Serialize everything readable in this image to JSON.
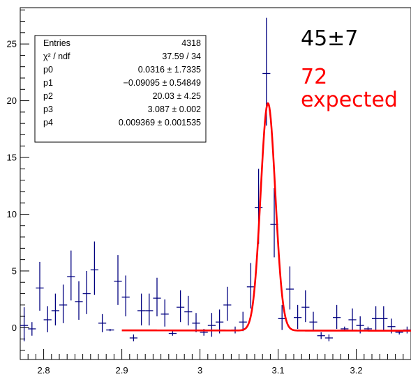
{
  "chart_data": {
    "type": "scatter",
    "title": "",
    "xlabel": "",
    "ylabel": "",
    "xlim": [
      2.77,
      3.27
    ],
    "ylim": [
      -2.8,
      28.2
    ],
    "x_ticks": [
      2.8,
      2.9,
      3.0,
      3.1,
      3.2
    ],
    "x_tick_labels": [
      "2.8",
      "2.9",
      "3",
      "3.1",
      "3.2"
    ],
    "y_ticks": [
      0,
      5,
      10,
      15,
      20,
      25
    ],
    "y_tick_labels": [
      "0",
      "5",
      "10",
      "15",
      "20",
      "25"
    ],
    "grid": false,
    "bin_width": 0.01,
    "series": [
      {
        "color": "#00007f",
        "points": [
          {
            "x": 2.775,
            "y": 0.2,
            "yerr_low": 1.4,
            "yerr_high": 1.6
          },
          {
            "x": 2.785,
            "y": -0.1,
            "yerr_low": 0.6,
            "yerr_high": 0.6
          },
          {
            "x": 2.795,
            "y": 3.5,
            "yerr_low": 2.0,
            "yerr_high": 2.3
          },
          {
            "x": 2.805,
            "y": 0.7,
            "yerr_low": 1.1,
            "yerr_high": 1.2
          },
          {
            "x": 2.815,
            "y": 1.5,
            "yerr_low": 1.3,
            "yerr_high": 1.5
          },
          {
            "x": 2.825,
            "y": 2.0,
            "yerr_low": 1.6,
            "yerr_high": 1.8
          },
          {
            "x": 2.835,
            "y": 4.5,
            "yerr_low": 2.1,
            "yerr_high": 2.3
          },
          {
            "x": 2.845,
            "y": 2.3,
            "yerr_low": 1.6,
            "yerr_high": 1.8
          },
          {
            "x": 2.855,
            "y": 3.0,
            "yerr_low": 1.8,
            "yerr_high": 2.0
          },
          {
            "x": 2.865,
            "y": 5.1,
            "yerr_low": 2.2,
            "yerr_high": 2.5
          },
          {
            "x": 2.875,
            "y": 0.4,
            "yerr_low": 0.8,
            "yerr_high": 0.8
          },
          {
            "x": 2.885,
            "y": -0.2,
            "yerr_low": 0.1,
            "yerr_high": 0.1
          },
          {
            "x": 2.895,
            "y": 4.1,
            "yerr_low": 2.1,
            "yerr_high": 2.3
          },
          {
            "x": 2.905,
            "y": 2.7,
            "yerr_low": 1.7,
            "yerr_high": 1.9
          },
          {
            "x": 2.915,
            "y": -0.9,
            "yerr_low": 0.3,
            "yerr_high": 0.3
          },
          {
            "x": 2.925,
            "y": 1.5,
            "yerr_low": 1.3,
            "yerr_high": 1.5
          },
          {
            "x": 2.935,
            "y": 1.5,
            "yerr_low": 1.3,
            "yerr_high": 1.5
          },
          {
            "x": 2.945,
            "y": 2.6,
            "yerr_low": 1.6,
            "yerr_high": 1.8
          },
          {
            "x": 2.955,
            "y": 1.2,
            "yerr_low": 1.1,
            "yerr_high": 1.3
          },
          {
            "x": 2.965,
            "y": -0.5,
            "yerr_low": 0.2,
            "yerr_high": 0.2
          },
          {
            "x": 2.975,
            "y": 1.8,
            "yerr_low": 1.3,
            "yerr_high": 1.5
          },
          {
            "x": 2.985,
            "y": 1.4,
            "yerr_low": 1.2,
            "yerr_high": 1.4
          },
          {
            "x": 2.995,
            "y": 0.4,
            "yerr_low": 0.8,
            "yerr_high": 0.9
          },
          {
            "x": 3.005,
            "y": -0.4,
            "yerr_low": 0.3,
            "yerr_high": 0.3
          },
          {
            "x": 3.015,
            "y": 0.2,
            "yerr_low": 1.0,
            "yerr_high": 1.1
          },
          {
            "x": 3.025,
            "y": 0.5,
            "yerr_low": 1.0,
            "yerr_high": 1.1
          },
          {
            "x": 3.035,
            "y": 2.0,
            "yerr_low": 1.4,
            "yerr_high": 1.6
          },
          {
            "x": 3.045,
            "y": -0.2,
            "yerr_low": 0.3,
            "yerr_high": 0.3
          },
          {
            "x": 3.055,
            "y": 0.5,
            "yerr_low": 0.8,
            "yerr_high": 0.9
          },
          {
            "x": 3.065,
            "y": 3.6,
            "yerr_low": 1.9,
            "yerr_high": 2.1
          },
          {
            "x": 3.075,
            "y": 10.6,
            "yerr_low": 3.2,
            "yerr_high": 3.4
          },
          {
            "x": 3.085,
            "y": 22.4,
            "yerr_low": 4.6,
            "yerr_high": 4.9
          },
          {
            "x": 3.095,
            "y": 9.1,
            "yerr_low": 2.9,
            "yerr_high": 3.2
          },
          {
            "x": 3.105,
            "y": 0.8,
            "yerr_low": 1.0,
            "yerr_high": 1.2
          },
          {
            "x": 3.115,
            "y": 3.4,
            "yerr_low": 1.8,
            "yerr_high": 2.0
          },
          {
            "x": 3.125,
            "y": 0.9,
            "yerr_low": 1.0,
            "yerr_high": 1.1
          },
          {
            "x": 3.135,
            "y": 1.8,
            "yerr_low": 1.3,
            "yerr_high": 1.5
          },
          {
            "x": 3.145,
            "y": 0.5,
            "yerr_low": 0.8,
            "yerr_high": 0.9
          },
          {
            "x": 3.155,
            "y": -0.7,
            "yerr_low": 0.3,
            "yerr_high": 0.3
          },
          {
            "x": 3.165,
            "y": -0.9,
            "yerr_low": 0.3,
            "yerr_high": 0.3
          },
          {
            "x": 3.175,
            "y": 0.9,
            "yerr_low": 1.0,
            "yerr_high": 1.1
          },
          {
            "x": 3.185,
            "y": -0.1,
            "yerr_low": 0.2,
            "yerr_high": 0.2
          },
          {
            "x": 3.195,
            "y": 0.7,
            "yerr_low": 0.9,
            "yerr_high": 1.0
          },
          {
            "x": 3.205,
            "y": 0.2,
            "yerr_low": 0.7,
            "yerr_high": 0.8
          },
          {
            "x": 3.215,
            "y": -0.1,
            "yerr_low": 0.2,
            "yerr_high": 0.2
          },
          {
            "x": 3.225,
            "y": 0.8,
            "yerr_low": 1.0,
            "yerr_high": 1.1
          },
          {
            "x": 3.235,
            "y": 0.8,
            "yerr_low": 1.0,
            "yerr_high": 1.1
          },
          {
            "x": 3.245,
            "y": 0.1,
            "yerr_low": 0.6,
            "yerr_high": 0.7
          },
          {
            "x": 3.255,
            "y": -0.4,
            "yerr_low": 0.2,
            "yerr_high": 0.2
          },
          {
            "x": 3.265,
            "y": -0.2,
            "yerr_low": 0.3,
            "yerr_high": 0.3
          }
        ]
      }
    ],
    "fit": {
      "color": "#ff0000",
      "x_range": [
        2.9,
        3.27
      ],
      "p0": 0.0316,
      "p1": -0.09095,
      "p2": 20.03,
      "p3": 3.087,
      "p4": 0.009369
    },
    "stats_box": {
      "position": "top-left",
      "rows": [
        {
          "label": "Entries",
          "value": "4318"
        },
        {
          "label": "χ² / ndf",
          "value": "37.59 / 34"
        },
        {
          "label": "p0",
          "value": "0.0316 ± 1.7335"
        },
        {
          "label": "p1",
          "value": "−0.09095 ± 0.54849"
        },
        {
          "label": "p2",
          "value": "20.03 ± 4.25"
        },
        {
          "label": "p3",
          "value": "3.087 ± 0.002"
        },
        {
          "label": "p4",
          "value": "0.009369 ± 0.001535"
        }
      ]
    },
    "annotations": [
      {
        "text": "45±7",
        "color": "#000000"
      },
      {
        "text": "72",
        "color": "#ff0000"
      },
      {
        "text": "expected",
        "color": "#ff0000"
      }
    ]
  }
}
